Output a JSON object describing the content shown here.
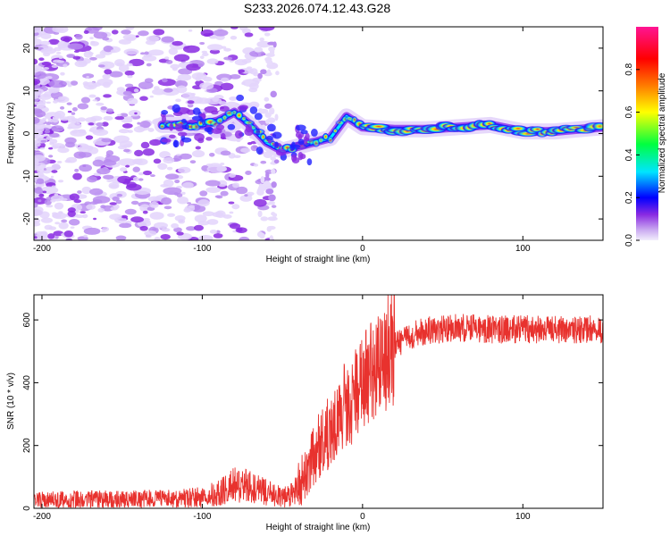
{
  "title": "S233.2026.074.12.43.G28",
  "chart_data": [
    {
      "type": "heatmap",
      "xlabel": "Height of straight line (km)",
      "ylabel": "Frequency (Hz)",
      "xlim": [
        -205,
        150
      ],
      "ylim": [
        -25,
        25
      ],
      "xticks": [
        -200,
        -100,
        0,
        100
      ],
      "yticks": [
        -20,
        -10,
        0,
        10,
        20
      ],
      "colorbar": {
        "label": "Normalized spectral amplitude",
        "range": [
          0,
          1
        ],
        "ticks": [
          "0.0",
          "0.2",
          "0.4",
          "0.6",
          "0.8"
        ]
      },
      "ridge": {
        "x": [
          -125,
          -100,
          -90,
          -80,
          -70,
          -60,
          -50,
          -40,
          -30,
          -20,
          -10,
          0,
          20,
          40,
          60,
          80,
          100,
          120,
          150
        ],
        "y": [
          2,
          2,
          3,
          5,
          2,
          -2,
          -4,
          -3,
          -2,
          -1,
          4,
          1.5,
          1,
          1,
          1.5,
          2,
          0.5,
          0.5,
          1.5
        ]
      }
    },
    {
      "type": "line",
      "xlabel": "Height of straight line (km)",
      "ylabel": "SNR (10 * v/v)",
      "xlim": [
        -205,
        150
      ],
      "ylim": [
        0,
        680
      ],
      "xticks": [
        -200,
        -100,
        0,
        100
      ],
      "yticks": [
        0,
        200,
        400,
        600
      ],
      "color": "#e8322e",
      "series": [
        {
          "name": "SNR",
          "x": [
            -205,
            -180,
            -150,
            -120,
            -100,
            -90,
            -80,
            -70,
            -60,
            -50,
            -45,
            -40,
            -35,
            -30,
            -25,
            -20,
            -15,
            -10,
            -5,
            0,
            5,
            10,
            15,
            20,
            30,
            40,
            60,
            80,
            100,
            120,
            150
          ],
          "y": [
            25,
            28,
            28,
            30,
            35,
            50,
            75,
            70,
            50,
            35,
            40,
            70,
            130,
            170,
            220,
            250,
            300,
            330,
            360,
            390,
            430,
            460,
            490,
            520,
            550,
            565,
            575,
            570,
            570,
            570,
            570
          ]
        }
      ]
    }
  ]
}
